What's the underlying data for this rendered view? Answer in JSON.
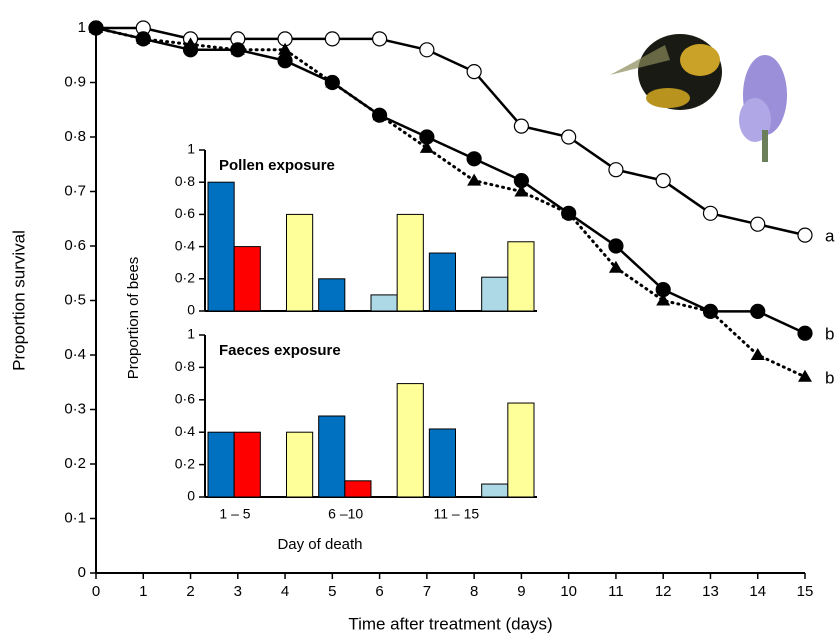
{
  "chart_data": [
    {
      "type": "line",
      "xlabel": "Time after treatment (days)",
      "ylabel": "Proportion survival",
      "x": [
        0,
        1,
        2,
        3,
        4,
        5,
        6,
        7,
        8,
        9,
        10,
        11,
        12,
        13,
        14,
        15
      ],
      "xlim": [
        0,
        15
      ],
      "xticks": [
        0,
        1,
        2,
        3,
        4,
        5,
        6,
        7,
        8,
        9,
        10,
        11,
        12,
        13,
        14,
        15
      ],
      "ylim": [
        0,
        1
      ],
      "yticks": [
        0,
        {
          "value": 0.1,
          "label": "0·1"
        },
        {
          "value": 0.2,
          "label": "0·2"
        },
        {
          "value": 0.3,
          "label": "0·3"
        },
        {
          "value": 0.4,
          "label": "0·4"
        },
        {
          "value": 0.5,
          "label": "0·5"
        },
        {
          "value": 0.6,
          "label": "0·6"
        },
        {
          "value": 0.7,
          "label": "0·7"
        },
        {
          "value": 0.8,
          "label": "0·8"
        },
        {
          "value": 0.9,
          "label": "0·9"
        },
        1
      ],
      "series": [
        {
          "color": "#000000",
          "marker": "circle-open",
          "line_style": "solid",
          "end_label": "a",
          "values": [
            1,
            1,
            0.98,
            0.98,
            0.98,
            0.98,
            0.98,
            0.96,
            0.92,
            0.82,
            0.8,
            0.74,
            0.72,
            0.66,
            0.64,
            0.62
          ]
        },
        {
          "color": "#000000",
          "marker": "circle-filled",
          "line_style": "solid",
          "end_label": "b",
          "values": [
            1,
            0.98,
            0.96,
            0.96,
            0.94,
            0.9,
            0.84,
            0.8,
            0.76,
            0.72,
            0.66,
            0.6,
            0.52,
            0.48,
            0.48,
            0.44
          ]
        },
        {
          "color": "#000000",
          "marker": "triangle",
          "line_style": "dotted",
          "end_label": "b",
          "values": [
            1,
            0.98,
            0.97,
            0.96,
            0.96,
            0.9,
            0.84,
            0.78,
            0.72,
            0.7,
            0.66,
            0.56,
            0.5,
            0.48,
            0.4,
            0.36
          ]
        }
      ]
    },
    {
      "type": "bar",
      "title": "Pollen exposure",
      "ylim": [
        0,
        1
      ],
      "yticks": [
        0,
        {
          "value": 0.2,
          "label": "0·2"
        },
        {
          "value": 0.4,
          "label": "0·4"
        },
        {
          "value": 0.6,
          "label": "0·6"
        },
        {
          "value": 0.8,
          "label": "0·8"
        },
        1
      ],
      "series": [
        {
          "color": "#0070c0",
          "values": [
            0.8,
            0.2,
            0.36
          ]
        },
        {
          "color": "#ff0000",
          "values": [
            0.4,
            0,
            0
          ]
        },
        {
          "color": "#add8e6",
          "values": [
            0,
            0.1,
            0.21
          ]
        },
        {
          "color": "#ffff99",
          "values": [
            0.6,
            0.6,
            0.43
          ]
        }
      ]
    },
    {
      "type": "bar",
      "title": "Faeces exposure",
      "ylabel": "Proportion of bees",
      "xlabel": "Day of death",
      "categories": [
        "1 – 5",
        "6 –10",
        "11 – 15"
      ],
      "ylim": [
        0,
        1
      ],
      "yticks": [
        0,
        {
          "value": 0.2,
          "label": "0·2"
        },
        {
          "value": 0.4,
          "label": "0·4"
        },
        {
          "value": 0.6,
          "label": "0·6"
        },
        {
          "value": 0.8,
          "label": "0·8"
        },
        1
      ],
      "series": [
        {
          "color": "#0070c0",
          "values": [
            0.4,
            0.5,
            0.42
          ]
        },
        {
          "color": "#ff0000",
          "values": [
            0.4,
            0.1,
            0
          ]
        },
        {
          "color": "#add8e6",
          "values": [
            0,
            0,
            0.08
          ]
        },
        {
          "color": "#ffff99",
          "values": [
            0.4,
            0.7,
            0.58
          ]
        }
      ]
    }
  ]
}
